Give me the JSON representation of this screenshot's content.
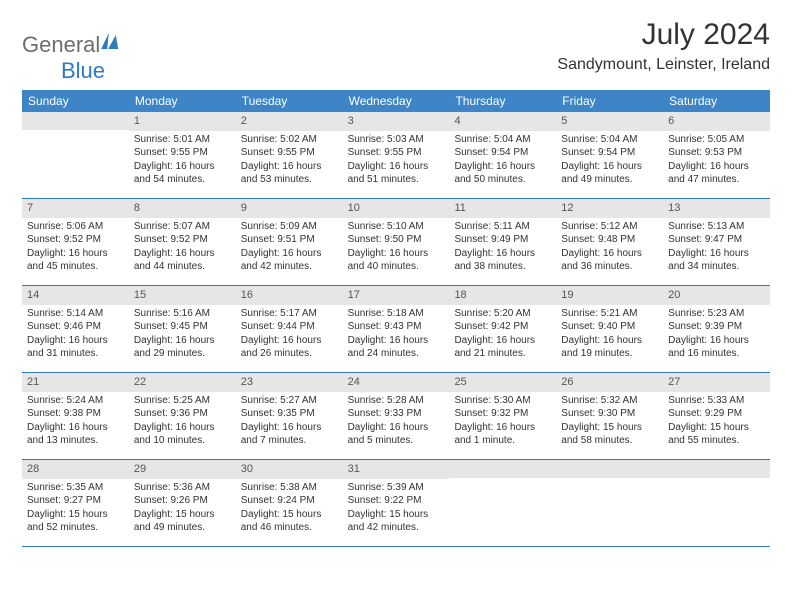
{
  "brand": {
    "part1": "General",
    "part2": "Blue"
  },
  "title": "July 2024",
  "location": "Sandymount, Leinster, Ireland",
  "colors": {
    "header_bg": "#3d85c6",
    "header_fg": "#ffffff",
    "daynum_bg": "#e6e6e6",
    "row_border": "#2f7bbf",
    "brand_gray": "#6e6e6e",
    "brand_blue": "#2f7bbf",
    "text": "#333333",
    "page_bg": "#ffffff"
  },
  "weekdays": [
    "Sunday",
    "Monday",
    "Tuesday",
    "Wednesday",
    "Thursday",
    "Friday",
    "Saturday"
  ],
  "weeks": [
    [
      {
        "n": "",
        "sr": "",
        "ss": "",
        "dl": ""
      },
      {
        "n": "1",
        "sr": "Sunrise: 5:01 AM",
        "ss": "Sunset: 9:55 PM",
        "dl": "Daylight: 16 hours and 54 minutes."
      },
      {
        "n": "2",
        "sr": "Sunrise: 5:02 AM",
        "ss": "Sunset: 9:55 PM",
        "dl": "Daylight: 16 hours and 53 minutes."
      },
      {
        "n": "3",
        "sr": "Sunrise: 5:03 AM",
        "ss": "Sunset: 9:55 PM",
        "dl": "Daylight: 16 hours and 51 minutes."
      },
      {
        "n": "4",
        "sr": "Sunrise: 5:04 AM",
        "ss": "Sunset: 9:54 PM",
        "dl": "Daylight: 16 hours and 50 minutes."
      },
      {
        "n": "5",
        "sr": "Sunrise: 5:04 AM",
        "ss": "Sunset: 9:54 PM",
        "dl": "Daylight: 16 hours and 49 minutes."
      },
      {
        "n": "6",
        "sr": "Sunrise: 5:05 AM",
        "ss": "Sunset: 9:53 PM",
        "dl": "Daylight: 16 hours and 47 minutes."
      }
    ],
    [
      {
        "n": "7",
        "sr": "Sunrise: 5:06 AM",
        "ss": "Sunset: 9:52 PM",
        "dl": "Daylight: 16 hours and 45 minutes."
      },
      {
        "n": "8",
        "sr": "Sunrise: 5:07 AM",
        "ss": "Sunset: 9:52 PM",
        "dl": "Daylight: 16 hours and 44 minutes."
      },
      {
        "n": "9",
        "sr": "Sunrise: 5:09 AM",
        "ss": "Sunset: 9:51 PM",
        "dl": "Daylight: 16 hours and 42 minutes."
      },
      {
        "n": "10",
        "sr": "Sunrise: 5:10 AM",
        "ss": "Sunset: 9:50 PM",
        "dl": "Daylight: 16 hours and 40 minutes."
      },
      {
        "n": "11",
        "sr": "Sunrise: 5:11 AM",
        "ss": "Sunset: 9:49 PM",
        "dl": "Daylight: 16 hours and 38 minutes."
      },
      {
        "n": "12",
        "sr": "Sunrise: 5:12 AM",
        "ss": "Sunset: 9:48 PM",
        "dl": "Daylight: 16 hours and 36 minutes."
      },
      {
        "n": "13",
        "sr": "Sunrise: 5:13 AM",
        "ss": "Sunset: 9:47 PM",
        "dl": "Daylight: 16 hours and 34 minutes."
      }
    ],
    [
      {
        "n": "14",
        "sr": "Sunrise: 5:14 AM",
        "ss": "Sunset: 9:46 PM",
        "dl": "Daylight: 16 hours and 31 minutes."
      },
      {
        "n": "15",
        "sr": "Sunrise: 5:16 AM",
        "ss": "Sunset: 9:45 PM",
        "dl": "Daylight: 16 hours and 29 minutes."
      },
      {
        "n": "16",
        "sr": "Sunrise: 5:17 AM",
        "ss": "Sunset: 9:44 PM",
        "dl": "Daylight: 16 hours and 26 minutes."
      },
      {
        "n": "17",
        "sr": "Sunrise: 5:18 AM",
        "ss": "Sunset: 9:43 PM",
        "dl": "Daylight: 16 hours and 24 minutes."
      },
      {
        "n": "18",
        "sr": "Sunrise: 5:20 AM",
        "ss": "Sunset: 9:42 PM",
        "dl": "Daylight: 16 hours and 21 minutes."
      },
      {
        "n": "19",
        "sr": "Sunrise: 5:21 AM",
        "ss": "Sunset: 9:40 PM",
        "dl": "Daylight: 16 hours and 19 minutes."
      },
      {
        "n": "20",
        "sr": "Sunrise: 5:23 AM",
        "ss": "Sunset: 9:39 PM",
        "dl": "Daylight: 16 hours and 16 minutes."
      }
    ],
    [
      {
        "n": "21",
        "sr": "Sunrise: 5:24 AM",
        "ss": "Sunset: 9:38 PM",
        "dl": "Daylight: 16 hours and 13 minutes."
      },
      {
        "n": "22",
        "sr": "Sunrise: 5:25 AM",
        "ss": "Sunset: 9:36 PM",
        "dl": "Daylight: 16 hours and 10 minutes."
      },
      {
        "n": "23",
        "sr": "Sunrise: 5:27 AM",
        "ss": "Sunset: 9:35 PM",
        "dl": "Daylight: 16 hours and 7 minutes."
      },
      {
        "n": "24",
        "sr": "Sunrise: 5:28 AM",
        "ss": "Sunset: 9:33 PM",
        "dl": "Daylight: 16 hours and 5 minutes."
      },
      {
        "n": "25",
        "sr": "Sunrise: 5:30 AM",
        "ss": "Sunset: 9:32 PM",
        "dl": "Daylight: 16 hours and 1 minute."
      },
      {
        "n": "26",
        "sr": "Sunrise: 5:32 AM",
        "ss": "Sunset: 9:30 PM",
        "dl": "Daylight: 15 hours and 58 minutes."
      },
      {
        "n": "27",
        "sr": "Sunrise: 5:33 AM",
        "ss": "Sunset: 9:29 PM",
        "dl": "Daylight: 15 hours and 55 minutes."
      }
    ],
    [
      {
        "n": "28",
        "sr": "Sunrise: 5:35 AM",
        "ss": "Sunset: 9:27 PM",
        "dl": "Daylight: 15 hours and 52 minutes."
      },
      {
        "n": "29",
        "sr": "Sunrise: 5:36 AM",
        "ss": "Sunset: 9:26 PM",
        "dl": "Daylight: 15 hours and 49 minutes."
      },
      {
        "n": "30",
        "sr": "Sunrise: 5:38 AM",
        "ss": "Sunset: 9:24 PM",
        "dl": "Daylight: 15 hours and 46 minutes."
      },
      {
        "n": "31",
        "sr": "Sunrise: 5:39 AM",
        "ss": "Sunset: 9:22 PM",
        "dl": "Daylight: 15 hours and 42 minutes."
      },
      {
        "n": "",
        "sr": "",
        "ss": "",
        "dl": ""
      },
      {
        "n": "",
        "sr": "",
        "ss": "",
        "dl": ""
      },
      {
        "n": "",
        "sr": "",
        "ss": "",
        "dl": ""
      }
    ]
  ]
}
